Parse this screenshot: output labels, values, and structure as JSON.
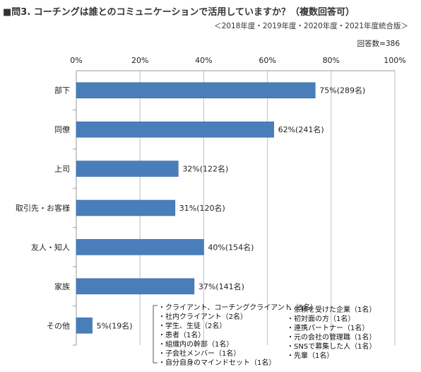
{
  "header": {
    "title": "■問3. コーチングは誰とのコミュニケーションで活用していますか？（複数回答可）",
    "subtitle": "＜2018年度・2019年度・2020年度・2021年度統合版＞",
    "respondents": "回答数=386"
  },
  "colors": {
    "bar": "#4a7ebb",
    "bar_edge": "#3a6aa4",
    "grid": "#bfbfbf",
    "axis": "#999999"
  },
  "chart_data": {
    "type": "bar",
    "orientation": "horizontal",
    "categories": [
      "部下",
      "同僚",
      "上司",
      "取引先・お客様",
      "友人・知人",
      "家族",
      "その他"
    ],
    "values": [
      75,
      62,
      32,
      31,
      40,
      37,
      5
    ],
    "data_labels": [
      "75%(289名)",
      "62%(241名)",
      "32%(122名)",
      "31%(120名)",
      "40%(154名)",
      "37%(141名)",
      "5%(19名)"
    ],
    "xlim": [
      0,
      100
    ],
    "xticks": [
      "0%",
      "20%",
      "40%",
      "60%",
      "80%",
      "100%"
    ],
    "x_axis_position": "top",
    "grid": true
  },
  "notes": {
    "left": [
      "・クライアント、コーチングクライアント（5名）",
      "・社内クライアント（2名）",
      "・学生、生徒（2名）",
      "・患者（1名）",
      "・組織内の幹部（1名）",
      "・子会社メンバー（1名）",
      "・自分自身のマインドセット（1名）"
    ],
    "right": [
      "・依頼を受けた企業（1名）",
      "・初対面の方（1名）",
      "・連携パートナー（1名）",
      "・元の会社の管理職（1名）",
      "・SNSで募集した人（1名）",
      "・先輩（1名）"
    ]
  }
}
